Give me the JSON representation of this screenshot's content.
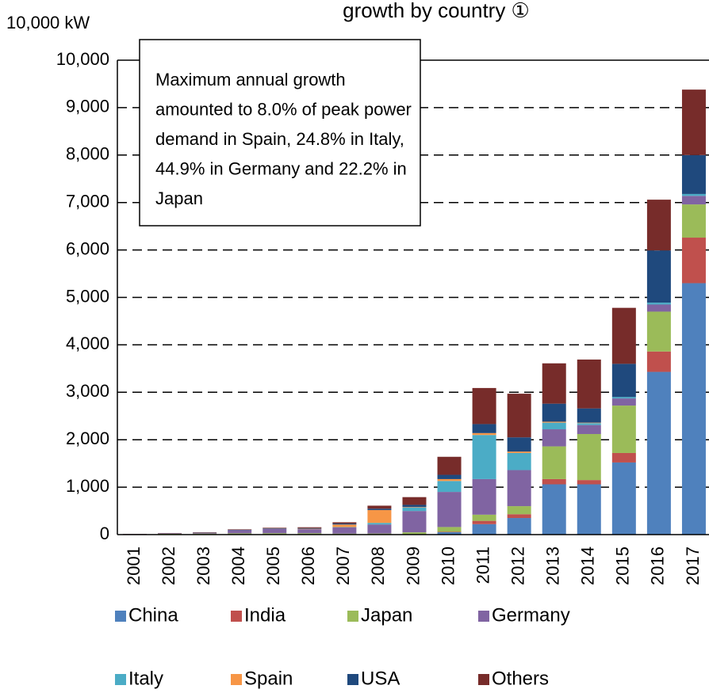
{
  "chart_data": {
    "type": "stacked_bar",
    "title": "growth by country ①",
    "y_unit_label": "10,000 kW",
    "annotation": [
      "Maximum annual growth",
      "amounted to 8.0% of peak power",
      "demand in Spain, 24.8% in Italy,",
      "44.9% in Germany and 22.2% in",
      "Japan"
    ],
    "categories": [
      "2001",
      "2002",
      "2003",
      "2004",
      "2005",
      "2006",
      "2007",
      "2008",
      "2009",
      "2010",
      "2011",
      "2012",
      "2013",
      "2014",
      "2015",
      "2016",
      "2017"
    ],
    "series": [
      {
        "name": "China",
        "color": "#4f81bd",
        "values": [
          0,
          0,
          0,
          0,
          0,
          0,
          0,
          0,
          0,
          50,
          220,
          350,
          1060,
          1060,
          1520,
          3430,
          5300
        ]
      },
      {
        "name": "India",
        "color": "#c0504d",
        "values": [
          0,
          0,
          0,
          0,
          0,
          0,
          0,
          0,
          0,
          10,
          70,
          80,
          110,
          90,
          200,
          430,
          960
        ]
      },
      {
        "name": "Japan",
        "color": "#9bbb59",
        "values": [
          7,
          18,
          22,
          27,
          29,
          29,
          21,
          23,
          48,
          100,
          130,
          170,
          690,
          970,
          1000,
          840,
          700
        ]
      },
      {
        "name": "Germany",
        "color": "#8064a2",
        "values": [
          5,
          8,
          14,
          67,
          91,
          85,
          130,
          190,
          450,
          740,
          750,
          760,
          360,
          190,
          150,
          150,
          180
        ]
      },
      {
        "name": "Italy",
        "color": "#4bacc6",
        "values": [
          0,
          0,
          0,
          0,
          0,
          0,
          7,
          34,
          72,
          230,
          930,
          360,
          140,
          40,
          30,
          40,
          40
        ]
      },
      {
        "name": "Spain",
        "color": "#f79646",
        "values": [
          0,
          0,
          0,
          0,
          2,
          9,
          54,
          270,
          10,
          40,
          40,
          30,
          20,
          10,
          0,
          0,
          0
        ]
      },
      {
        "name": "USA",
        "color": "#1f497d",
        "values": [
          0,
          3,
          5,
          6,
          10,
          14,
          21,
          30,
          47,
          90,
          190,
          300,
          380,
          300,
          700,
          1100,
          820
        ]
      },
      {
        "name": "Others",
        "color": "#772c2a",
        "values": [
          3,
          5,
          8,
          10,
          12,
          18,
          27,
          63,
          163,
          380,
          760,
          920,
          850,
          1030,
          1180,
          1070,
          1380
        ]
      }
    ],
    "ylim": [
      0,
      10000
    ],
    "yticks": [
      0,
      {
        "value": 1000,
        "label": "1,000"
      },
      {
        "value": 2000,
        "label": "2,000"
      },
      {
        "value": 3000,
        "label": "3,000"
      },
      {
        "value": 4000,
        "label": "4,000"
      },
      {
        "value": 5000,
        "label": "5,000"
      },
      {
        "value": 6000,
        "label": "6,000"
      },
      {
        "value": 7000,
        "label": "7,000"
      },
      {
        "value": 8000,
        "label": "8,000"
      },
      {
        "value": 9000,
        "label": "9,000"
      },
      {
        "value": 10000,
        "label": "10,000"
      }
    ],
    "grid": true
  }
}
